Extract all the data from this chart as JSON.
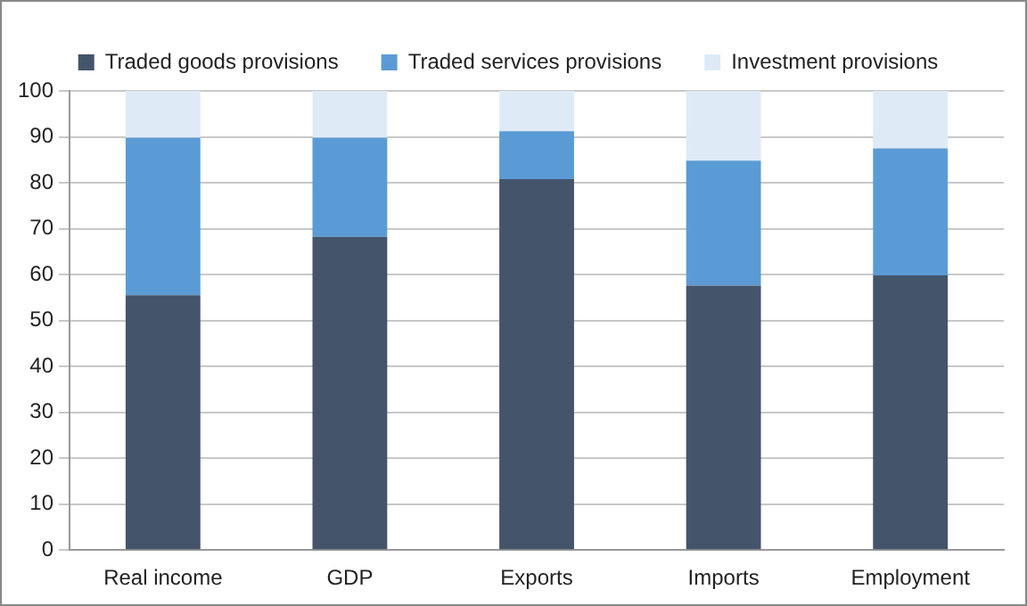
{
  "chart_data": {
    "type": "bar",
    "stacked": true,
    "categories": [
      "Real income",
      "GDP",
      "Exports",
      "Imports",
      "Employment"
    ],
    "series": [
      {
        "name": "Traded goods provisions",
        "color": "#44546a",
        "values": [
          55.5,
          68.2,
          80.8,
          57.6,
          59.8
        ]
      },
      {
        "name": "Traded services provisions",
        "color": "#5b9bd5",
        "values": [
          34.3,
          21.6,
          10.4,
          27.2,
          27.7
        ]
      },
      {
        "name": "Investment provisions",
        "color": "#deebf7",
        "values": [
          10.2,
          10.2,
          8.8,
          15.2,
          12.5
        ]
      }
    ],
    "ylim": [
      0,
      100
    ],
    "yticks": [
      0,
      10,
      20,
      30,
      40,
      50,
      60,
      70,
      80,
      90,
      100
    ],
    "grid": "y",
    "legend": "top"
  }
}
